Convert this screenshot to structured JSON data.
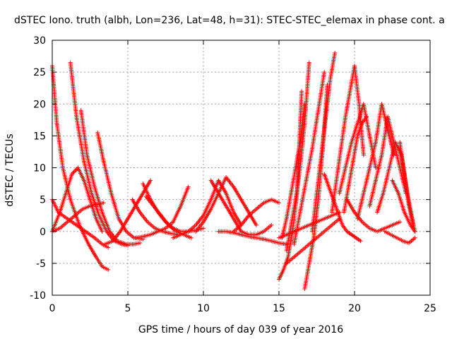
{
  "chart_data": {
    "type": "scatter",
    "title": "dSTEC Iono. truth (albh, Lon=236, Lat=48, h=31): STEC-STEC_elemax in phase cont. a",
    "xlabel": "GPS time / hours of day 039 of year 2016",
    "ylabel": "dSTEC  / TECUs",
    "xlim": [
      0,
      25
    ],
    "ylim": [
      -10,
      30
    ],
    "xticks": [
      0,
      5,
      10,
      15,
      20,
      25
    ],
    "yticks": [
      -10,
      -5,
      0,
      5,
      10,
      15,
      20,
      25,
      30
    ],
    "grid": true,
    "marker": "plus",
    "color": "#ff0000",
    "series": [
      {
        "x": [
          0.0,
          0.3,
          0.7,
          1.2,
          1.8,
          2.4,
          2.9,
          3.3,
          3.7
        ],
        "y": [
          26,
          17,
          10,
          5,
          1,
          -2,
          -4,
          -5.5,
          -6
        ]
      },
      {
        "x": [
          0.0,
          0.4,
          1.0,
          1.6,
          2.2,
          2.8,
          3.3,
          3.7
        ],
        "y": [
          5,
          3,
          2,
          1,
          0,
          -1,
          -2,
          -2.5
        ]
      },
      {
        "x": [
          1.2,
          1.6,
          2.1,
          2.6,
          3.1,
          3.6,
          4.1,
          4.6,
          5.0
        ],
        "y": [
          26.5,
          18,
          11,
          6,
          2.5,
          0,
          -1.5,
          -2,
          -2.2
        ]
      },
      {
        "x": [
          1.9,
          2.3,
          2.8,
          3.3,
          3.8,
          4.3,
          4.9,
          5.4,
          5.8
        ],
        "y": [
          19,
          12,
          7,
          3,
          0,
          -1.5,
          -2,
          -2,
          -1.8
        ]
      },
      {
        "x": [
          3.0,
          3.4,
          3.9,
          4.4,
          4.9,
          5.4,
          6.0
        ],
        "y": [
          15.5,
          11,
          6,
          2,
          0,
          -1,
          -1.2
        ]
      },
      {
        "x": [
          0.0,
          0.5,
          0.9,
          1.3,
          1.7,
          2.1,
          2.5,
          2.9,
          3.3
        ],
        "y": [
          0,
          3,
          6,
          9,
          10,
          8,
          5,
          2,
          0
        ]
      },
      {
        "x": [
          0.0,
          0.5,
          1.0,
          1.5,
          2.0,
          2.5,
          3.0,
          3.4
        ],
        "y": [
          0,
          0.5,
          1.5,
          2.5,
          3.5,
          4,
          4.3,
          4.5
        ]
      },
      {
        "x": [
          3.5,
          4.0,
          4.5,
          5.0,
          5.5,
          6.0,
          6.5
        ],
        "y": [
          -2,
          -1.5,
          0,
          2,
          4,
          6,
          8
        ]
      },
      {
        "x": [
          5.3,
          5.8,
          6.3,
          6.8,
          7.3,
          7.8,
          8.3
        ],
        "y": [
          5,
          3,
          1.5,
          0.5,
          0,
          -0.3,
          -0.5
        ]
      },
      {
        "x": [
          5.5,
          6.0,
          6.5,
          7.0,
          7.5,
          8.0,
          8.5,
          9.0
        ],
        "y": [
          -1,
          -0.8,
          -0.5,
          0,
          0.5,
          1.5,
          4,
          7
        ]
      },
      {
        "x": [
          6.2,
          6.7,
          7.2,
          7.7,
          8.2,
          8.7,
          9.2
        ],
        "y": [
          5.5,
          4,
          2.5,
          1,
          0,
          -0.5,
          -1
        ]
      },
      {
        "x": [
          6.0,
          6.5,
          7.0,
          7.5,
          8.0,
          8.5,
          9.0,
          9.5,
          10.0
        ],
        "y": [
          7.5,
          5,
          3,
          1.5,
          0.5,
          0,
          0,
          0.2,
          0.5
        ]
      },
      {
        "x": [
          8.0,
          8.5,
          9.0,
          9.5,
          10.0,
          10.5,
          11.0,
          11.5,
          12.0,
          12.5
        ],
        "y": [
          -1,
          -0.5,
          0,
          1,
          2.5,
          5,
          8,
          6,
          3,
          1
        ]
      },
      {
        "x": [
          9.5,
          10.0,
          10.5,
          11.0,
          11.5,
          12.0,
          12.5,
          13.0,
          13.5
        ],
        "y": [
          0,
          1.5,
          3.5,
          6,
          8.5,
          7,
          5,
          3,
          1
        ]
      },
      {
        "x": [
          10.5,
          11.0,
          11.5,
          12.0,
          12.5,
          13.0,
          13.5,
          14.0,
          14.5
        ],
        "y": [
          8,
          6,
          4,
          2,
          0,
          -0.5,
          -0.5,
          0,
          1
        ]
      },
      {
        "x": [
          12.0,
          12.5,
          13.0,
          13.5,
          14.0,
          14.5,
          15.0
        ],
        "y": [
          0,
          1,
          2.5,
          3.5,
          4.5,
          5,
          4.5
        ]
      },
      {
        "x": [
          11.0,
          11.5,
          12.0,
          12.5,
          13.0,
          13.5,
          14.0,
          14.5,
          15.0,
          15.5
        ],
        "y": [
          0,
          0,
          -0.2,
          -0.5,
          -0.8,
          -1,
          -1.2,
          -1.5,
          -1.8,
          -2
        ]
      },
      {
        "x": [
          15.0,
          15.3,
          15.6,
          15.9,
          16.2,
          16.5
        ],
        "y": [
          -7.5,
          -6,
          -4,
          0,
          6,
          22
        ]
      },
      {
        "x": [
          15.2,
          15.5,
          15.8,
          16.1,
          16.4,
          16.7
        ],
        "y": [
          -1,
          2,
          6,
          10,
          14,
          20
        ]
      },
      {
        "x": [
          15.5,
          15.8,
          16.1,
          16.4,
          16.7,
          17.0
        ],
        "y": [
          -3,
          1,
          5,
          10,
          17,
          26.5
        ]
      },
      {
        "x": [
          16.0,
          16.4,
          16.8,
          17.2,
          17.6,
          18.0
        ],
        "y": [
          -2,
          3,
          8,
          13,
          19,
          25
        ]
      },
      {
        "x": [
          16.7,
          17.0,
          17.3,
          17.6,
          17.9,
          18.2
        ],
        "y": [
          -9,
          -5,
          -1,
          5,
          13,
          23
        ]
      },
      {
        "x": [
          17.2,
          17.5,
          17.8,
          18.1,
          18.4,
          18.7
        ],
        "y": [
          0,
          6,
          12,
          18,
          24,
          28
        ]
      },
      {
        "x": [
          15.0,
          15.5,
          16.0,
          16.5,
          17.0,
          17.5,
          18.0,
          18.5,
          19.0
        ],
        "y": [
          -1,
          -0.5,
          0,
          0.5,
          1,
          1.5,
          2,
          2.5,
          3
        ]
      },
      {
        "x": [
          15.5,
          16.0,
          16.5,
          17.0,
          17.5,
          18.0,
          18.5,
          19.0
        ],
        "y": [
          -5,
          -4,
          -3,
          -2,
          -1,
          0,
          1,
          2
        ]
      },
      {
        "x": [
          18.0,
          18.3,
          18.6,
          18.9,
          19.2,
          19.5,
          19.8,
          20.1,
          20.4
        ],
        "y": [
          9,
          7,
          5,
          3,
          1,
          0,
          -0.5,
          -1,
          -1.5
        ]
      },
      {
        "x": [
          18.5,
          18.8,
          19.1,
          19.4,
          19.7,
          20.0,
          20.3,
          20.6
        ],
        "y": [
          3,
          8,
          13,
          18,
          22,
          26,
          20,
          12
        ]
      },
      {
        "x": [
          19.0,
          19.4,
          19.8,
          20.2,
          20.6,
          21.0,
          21.4
        ],
        "y": [
          6,
          10,
          14,
          17,
          20,
          15,
          10
        ]
      },
      {
        "x": [
          19.3,
          19.6,
          19.9,
          20.2,
          20.5,
          20.8
        ],
        "y": [
          3,
          7,
          11,
          15,
          17,
          18
        ]
      },
      {
        "x": [
          19.5,
          20.0,
          20.5,
          21.0,
          21.5,
          22.0,
          22.5,
          23.0
        ],
        "y": [
          5,
          3,
          1.5,
          0.5,
          0,
          0.5,
          1,
          1.5
        ]
      },
      {
        "x": [
          20.2,
          20.6,
          21.0,
          21.4,
          21.8,
          22.2,
          22.6
        ],
        "y": [
          2,
          6,
          10,
          14,
          20,
          16,
          12
        ]
      },
      {
        "x": [
          21.0,
          21.4,
          21.8,
          22.2,
          22.6,
          23.0,
          23.4
        ],
        "y": [
          4,
          8,
          12,
          18,
          14,
          10,
          6
        ]
      },
      {
        "x": [
          21.5,
          21.9,
          22.3,
          22.7,
          23.1,
          23.5,
          23.9
        ],
        "y": [
          3,
          6,
          10,
          14,
          12,
          6,
          1
        ]
      },
      {
        "x": [
          22.0,
          22.4,
          22.8,
          23.2,
          23.6,
          24.0
        ],
        "y": [
          0,
          -0.5,
          -1,
          -1.5,
          -1.8,
          -1
        ]
      },
      {
        "x": [
          22.5,
          22.9,
          23.3,
          23.7,
          24.0
        ],
        "y": [
          8,
          6,
          3,
          1,
          0
        ]
      },
      {
        "x": [
          23.0,
          23.3,
          23.6,
          24.0
        ],
        "y": [
          14,
          9,
          4,
          0
        ]
      }
    ]
  }
}
